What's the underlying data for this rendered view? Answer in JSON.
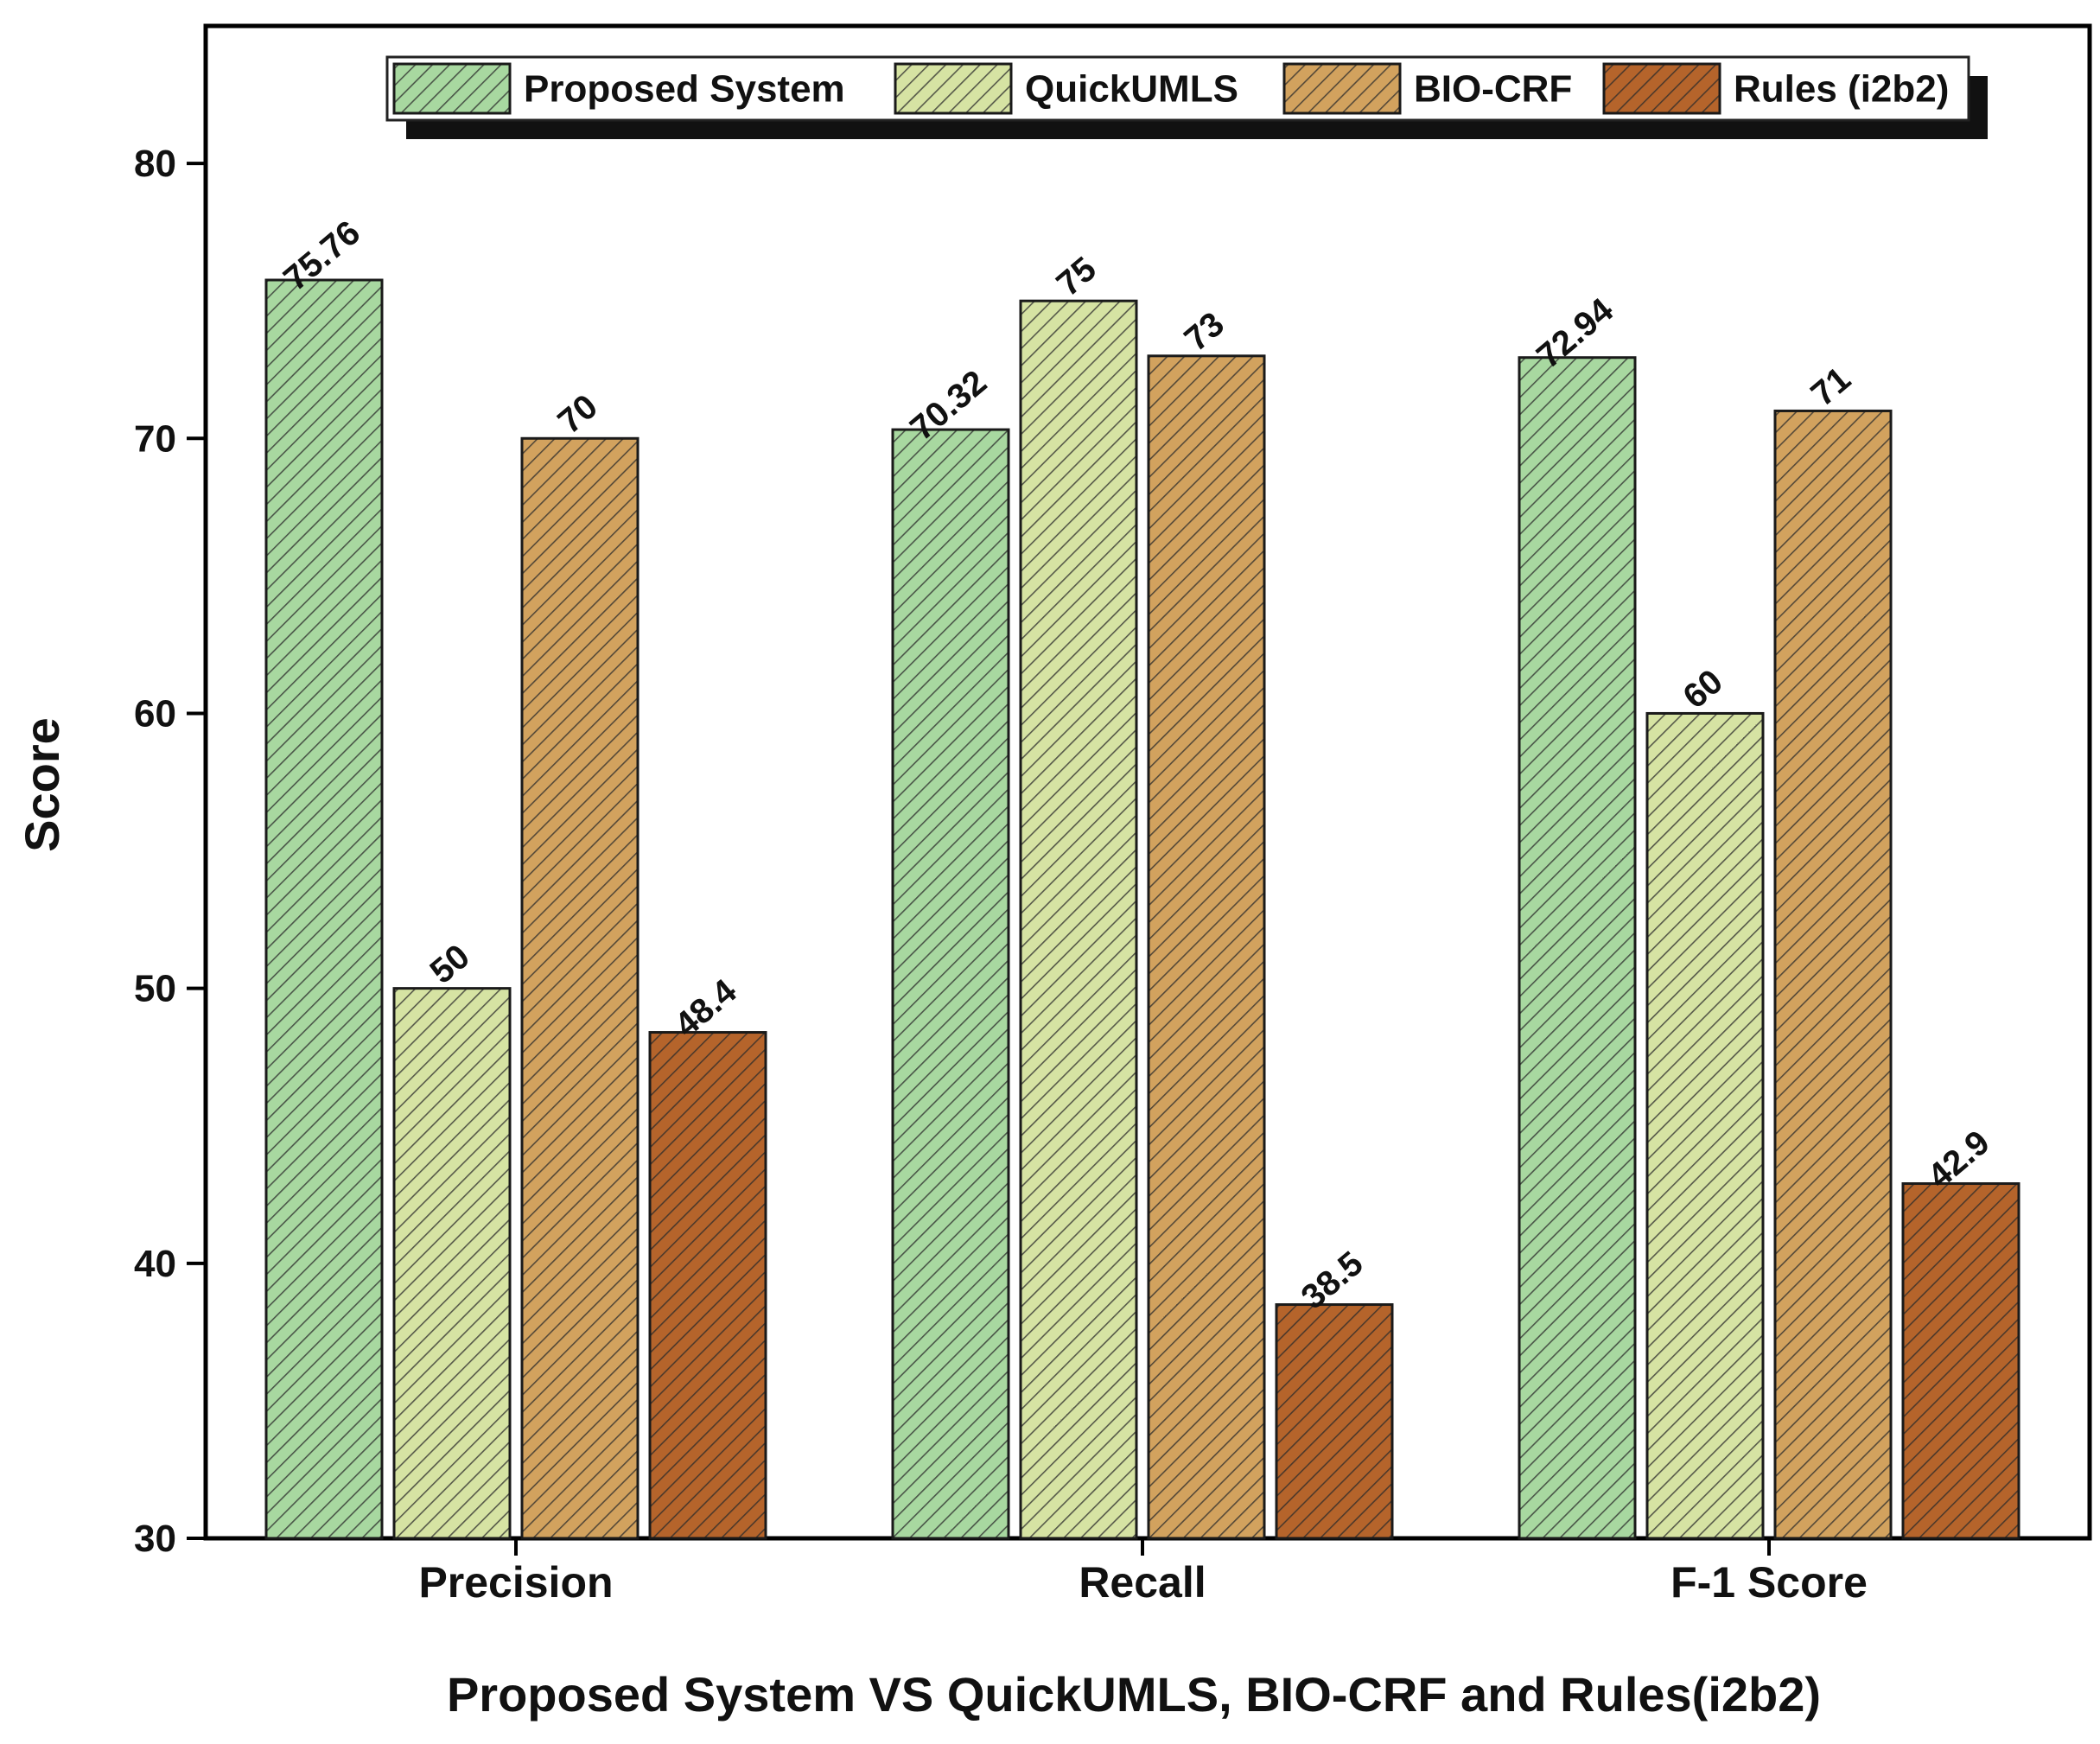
{
  "chart_data": {
    "type": "bar",
    "title": "",
    "xlabel": "Proposed System VS QuickUMLS, BIO-CRF and Rules(i2b2)",
    "ylabel": "Score",
    "ylim": [
      30,
      85
    ],
    "yticks": [
      30,
      40,
      50,
      60,
      70,
      80
    ],
    "grid": false,
    "legend_position": "top",
    "categories": [
      "Precision",
      "Recall",
      "F-1 Score"
    ],
    "series": [
      {
        "name": "Proposed System",
        "color": "#a8d8a0",
        "values": [
          75.76,
          70.32,
          72.94
        ],
        "labels": [
          "75.76",
          "70.32",
          "72.94"
        ]
      },
      {
        "name": "QuickUMLS",
        "color": "#d6e3a3",
        "values": [
          50,
          75,
          60
        ],
        "labels": [
          "50",
          "75",
          "60"
        ]
      },
      {
        "name": "BIO-CRF",
        "color": "#d2a25e",
        "values": [
          70,
          73,
          71
        ],
        "labels": [
          "70",
          "73",
          "71"
        ]
      },
      {
        "name": "Rules (i2b2)",
        "color": "#b5642b",
        "values": [
          48.4,
          38.5,
          42.9
        ],
        "labels": [
          "48.4",
          "38.5",
          "42.9"
        ]
      }
    ]
  }
}
